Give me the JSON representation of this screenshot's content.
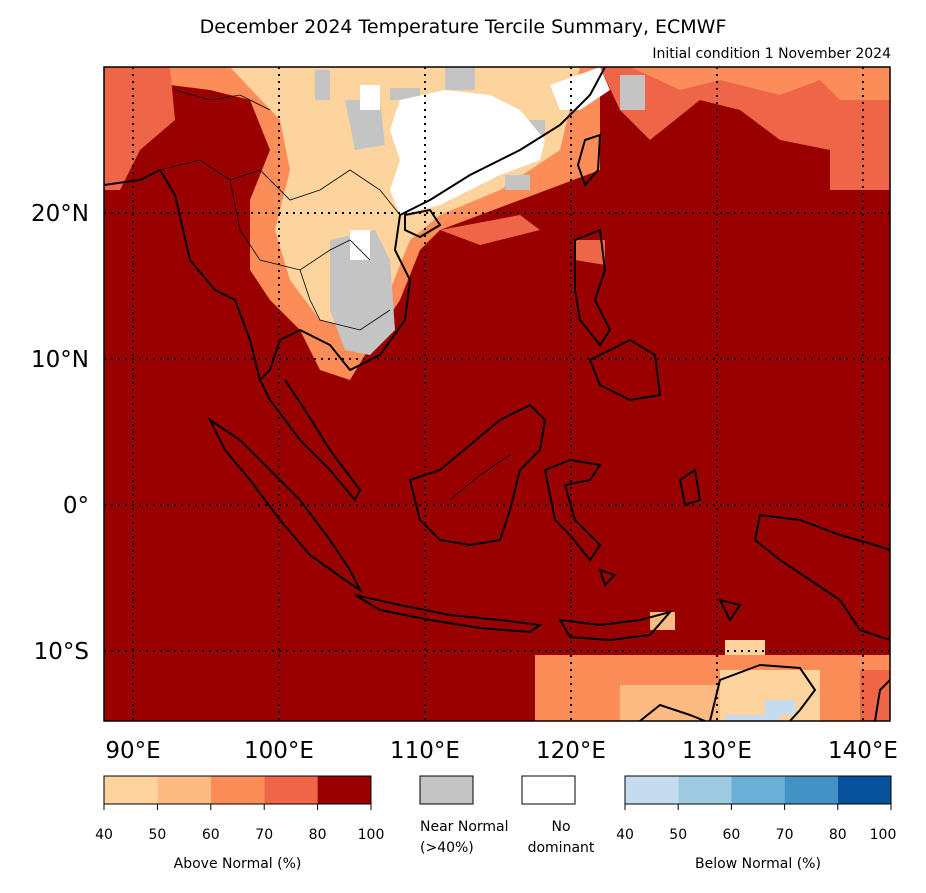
{
  "title": "December 2024 Temperature Tercile Summary, ECMWF",
  "subtitle": "Initial condition 1 November 2024",
  "map": {
    "lon_range": [
      88,
      142
    ],
    "lat_range": [
      -15,
      30
    ],
    "lon_ticks": [
      {
        "value": 90,
        "label": "90°E"
      },
      {
        "value": 100,
        "label": "100°E"
      },
      {
        "value": 110,
        "label": "110°E"
      },
      {
        "value": 120,
        "label": "120°E"
      },
      {
        "value": 130,
        "label": "130°E"
      },
      {
        "value": 140,
        "label": "140°E"
      }
    ],
    "lat_ticks": [
      {
        "value": 20,
        "label": "20°N"
      },
      {
        "value": 10,
        "label": "10°N"
      },
      {
        "value": 0,
        "label": "0°"
      },
      {
        "value": -10,
        "label": "10°S"
      }
    ],
    "gridlines": "dotted",
    "background_category": "above 80-100"
  },
  "legend": {
    "above": {
      "label": "Above Normal (%)",
      "ticks": [
        "40",
        "50",
        "60",
        "70",
        "80",
        "100"
      ],
      "colors": [
        "#fdd49e",
        "#fdbb84",
        "#fc8d59",
        "#ef6548",
        "#990000"
      ]
    },
    "near_normal": {
      "label_line1": "Near Normal",
      "label_line2": "(>40%)",
      "color": "#c4c4c4"
    },
    "no_dominant": {
      "label_line1": "No",
      "label_line2": "dominant",
      "color": "#ffffff"
    },
    "below": {
      "label": "Below Normal (%)",
      "ticks": [
        "40",
        "50",
        "60",
        "70",
        "80",
        "100"
      ],
      "colors": [
        "#c6dbef",
        "#9ecae1",
        "#6baed6",
        "#4292c6",
        "#08519c"
      ]
    }
  }
}
